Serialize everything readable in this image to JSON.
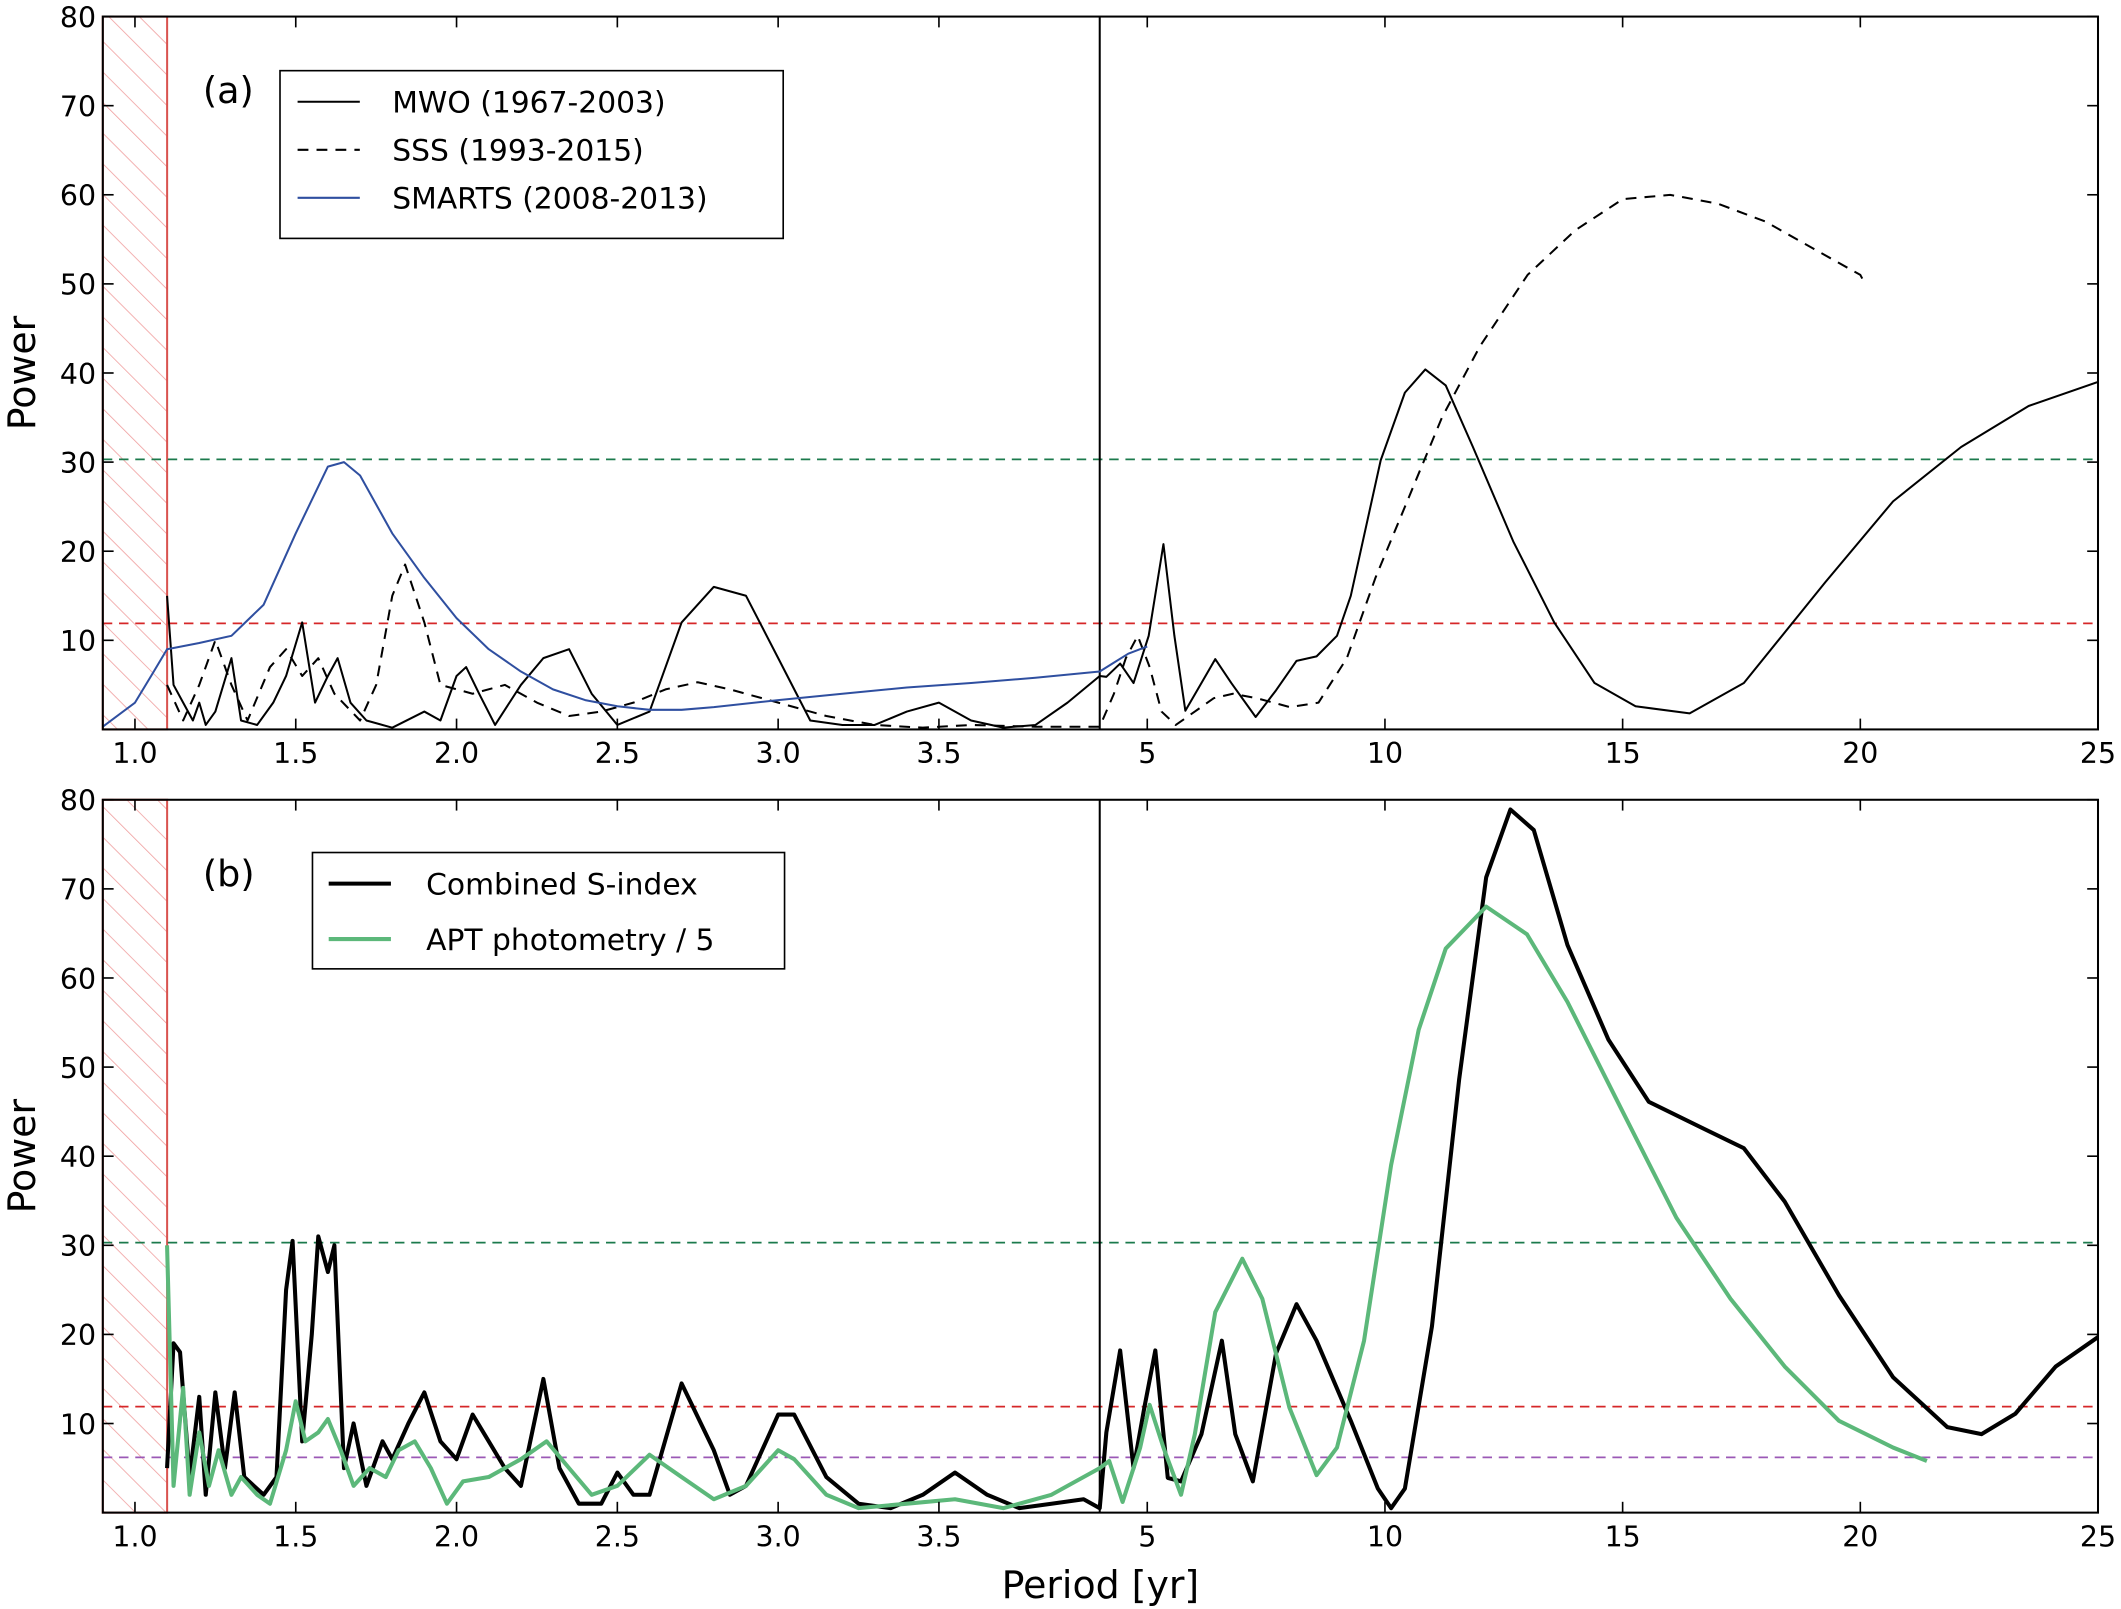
{
  "chart_data": [
    {
      "type": "line",
      "panel_label": "(a)",
      "ylabel": "Power",
      "xlim": [
        0.9,
        25
      ],
      "xbreak": 4.0,
      "xticks": [
        {
          "value": 1,
          "label": "1.0"
        },
        1.5,
        {
          "value": 2,
          "label": "2.0"
        },
        2.5,
        {
          "value": 3,
          "label": "3.0"
        },
        3.5,
        5,
        10,
        15,
        20,
        25
      ],
      "ylim": [
        0,
        80
      ],
      "yticks": [
        10,
        20,
        30,
        40,
        50,
        60,
        70,
        80
      ],
      "hlines": [
        {
          "value": 30.3,
          "color": "#1b7a4c"
        },
        {
          "value": 11.9,
          "color": "#d62728"
        }
      ],
      "vline": 4.0,
      "shaded": [
        0.9,
        1.1
      ],
      "series": [
        {
          "name": "MWO (1967-2003)",
          "color": "#000000",
          "dash": "solid",
          "width": 1.5,
          "x": [
            1.1,
            1.12,
            1.15,
            1.18,
            1.2,
            1.22,
            1.25,
            1.3,
            1.33,
            1.38,
            1.43,
            1.47,
            1.52,
            1.56,
            1.6,
            1.63,
            1.67,
            1.72,
            1.8,
            1.9,
            1.95,
            2.0,
            2.03,
            2.07,
            2.12,
            2.2,
            2.27,
            2.35,
            2.42,
            2.5,
            2.6,
            2.7,
            2.8,
            2.9,
            3.0,
            3.1,
            3.2,
            3.3,
            3.4,
            3.5,
            3.6,
            3.7,
            3.8,
            3.9,
            4.0,
            4.14,
            4.43,
            4.71,
            5.03,
            5.34,
            5.57,
            5.8,
            6.14,
            6.43,
            6.77,
            7.28,
            7.71,
            8.14,
            8.56,
            8.99,
            9.28,
            9.91,
            10.42,
            10.85,
            11.28,
            11.85,
            12.7,
            13.56,
            14.41,
            15.27,
            16.41,
            17.55,
            19.26,
            20.69,
            22.12,
            23.54,
            25
          ],
          "values": [
            15,
            5,
            3,
            1,
            3,
            0.5,
            2,
            8,
            1,
            0.5,
            3,
            6,
            12,
            3,
            6,
            8,
            3,
            1,
            0.2,
            2,
            1,
            6,
            7,
            4,
            0.5,
            5,
            8,
            9,
            4,
            0.5,
            2,
            12,
            16,
            15,
            8,
            1,
            0.5,
            0.5,
            2,
            3,
            1,
            0.2,
            0.5,
            3,
            6,
            5.9,
            7.4,
            5.2,
            10.5,
            20.8,
            10.5,
            2.1,
            5.2,
            7.9,
            5.2,
            1.4,
            4.4,
            7.7,
            8.2,
            10.5,
            15,
            30.2,
            37.8,
            40.4,
            38.6,
            31.7,
            21.1,
            12,
            5.2,
            2.6,
            1.8,
            5.2,
            16.5,
            25.6,
            31.7,
            36.3,
            39
          ]
        },
        {
          "name": "SSS (1993-2015)",
          "color": "#000000",
          "dash": "dashed",
          "width": 1.5,
          "x": [
            1.1,
            1.15,
            1.2,
            1.25,
            1.3,
            1.35,
            1.42,
            1.47,
            1.52,
            1.57,
            1.62,
            1.7,
            1.75,
            1.8,
            1.84,
            1.9,
            1.95,
            2.05,
            2.15,
            2.25,
            2.35,
            2.45,
            2.55,
            2.65,
            2.75,
            2.85,
            3.0,
            3.15,
            3.3,
            3.45,
            3.6,
            3.8,
            4.0,
            4.3,
            4.55,
            4.8,
            5.05,
            5.3,
            5.6,
            6.0,
            6.4,
            6.8,
            7.3,
            8.0,
            8.6,
            9.2,
            9.8,
            10.5,
            11.2,
            12,
            13,
            14,
            15,
            16,
            17,
            18,
            19,
            20,
            20.1
          ],
          "values": [
            5,
            1,
            5,
            10,
            5,
            1,
            7,
            9,
            6,
            8,
            4,
            1,
            5,
            15,
            18.5,
            12,
            5,
            4,
            5,
            3,
            1.5,
            2,
            3,
            4.5,
            5.3,
            4.5,
            3,
            1.5,
            0.5,
            0.2,
            0.5,
            0.3,
            0.3,
            4,
            8,
            10.5,
            7,
            2,
            0.5,
            2,
            3.5,
            4,
            3.5,
            2.5,
            3,
            8,
            17,
            26,
            35,
            43,
            51,
            56,
            59.5,
            60,
            59,
            57,
            54,
            51,
            50
          ]
        },
        {
          "name": "SMARTS (2008-2013)",
          "color": "#2f4fa0",
          "dash": "solid",
          "width": 1.5,
          "x": [
            0.9,
            1.0,
            1.05,
            1.1,
            1.2,
            1.3,
            1.4,
            1.5,
            1.6,
            1.65,
            1.7,
            1.8,
            1.9,
            2.0,
            2.1,
            2.2,
            2.3,
            2.4,
            2.5,
            2.6,
            2.7,
            2.8,
            3.0,
            3.2,
            3.4,
            3.6,
            3.8,
            4.0,
            4.3,
            4.6,
            5.0
          ],
          "values": [
            0.3,
            3,
            6,
            9,
            9.7,
            10.5,
            14,
            22,
            29.5,
            30,
            28.5,
            22,
            17,
            12.5,
            9,
            6.5,
            4.5,
            3.3,
            2.6,
            2.2,
            2.2,
            2.5,
            3.3,
            4,
            4.7,
            5.2,
            5.8,
            6.5,
            7.5,
            8.5,
            9.3
          ]
        }
      ]
    },
    {
      "type": "line",
      "panel_label": "(b)",
      "ylabel": "Power",
      "xlabel": "Period [yr]",
      "xlim": [
        0.9,
        25
      ],
      "xbreak": 4.0,
      "xticks": [
        {
          "value": 1,
          "label": "1.0"
        },
        1.5,
        {
          "value": 2,
          "label": "2.0"
        },
        2.5,
        {
          "value": 3,
          "label": "3.0"
        },
        3.5,
        5,
        10,
        15,
        20,
        25
      ],
      "ylim": [
        0,
        80
      ],
      "yticks": [
        10,
        20,
        30,
        40,
        50,
        60,
        70,
        80
      ],
      "hlines": [
        {
          "value": 30.3,
          "color": "#1b7a4c"
        },
        {
          "value": 11.9,
          "color": "#d62728"
        },
        {
          "value": 6.2,
          "color": "#9b59b6"
        }
      ],
      "vline": 4.0,
      "shaded": [
        0.9,
        1.1
      ],
      "series": [
        {
          "name": "Combined S-index",
          "color": "#000000",
          "dash": "solid",
          "width": 3,
          "x": [
            1.1,
            1.12,
            1.14,
            1.17,
            1.2,
            1.22,
            1.25,
            1.28,
            1.31,
            1.34,
            1.4,
            1.44,
            1.47,
            1.49,
            1.52,
            1.55,
            1.57,
            1.6,
            1.62,
            1.65,
            1.68,
            1.72,
            1.77,
            1.8,
            1.85,
            1.9,
            1.95,
            2.0,
            2.05,
            2.1,
            2.15,
            2.2,
            2.27,
            2.32,
            2.38,
            2.45,
            2.5,
            2.55,
            2.6,
            2.7,
            2.8,
            2.85,
            2.9,
            3.0,
            3.05,
            3.15,
            3.25,
            3.35,
            3.45,
            3.55,
            3.65,
            3.75,
            3.85,
            3.95,
            4.0,
            4.14,
            4.43,
            4.71,
            4.94,
            5.17,
            5.43,
            5.71,
            6.14,
            6.57,
            6.85,
            7.22,
            7.71,
            8.14,
            8.56,
            9.28,
            9.85,
            10.13,
            10.42,
            10.99,
            11.56,
            12.13,
            12.64,
            13.13,
            13.84,
            14.7,
            15.55,
            16.7,
            17.55,
            18.41,
            19.55,
            20.69,
            21.83,
            22.55,
            23.26,
            24.11,
            25
          ],
          "values": [
            5,
            19,
            18,
            4,
            13,
            2,
            13.5,
            5,
            13.5,
            4,
            2,
            4,
            25,
            30.5,
            8,
            20,
            31,
            27,
            30,
            5,
            10,
            3,
            8,
            6,
            10,
            13.5,
            8,
            6,
            11,
            8,
            5,
            3,
            15,
            5,
            1,
            1,
            4.5,
            2,
            2,
            14.5,
            7,
            2,
            3,
            11,
            11,
            4,
            1,
            0.5,
            2,
            4.5,
            2,
            0.5,
            1,
            1.5,
            0.5,
            9,
            18.2,
            5,
            11.8,
            18.2,
            3.9,
            3.5,
            8.8,
            19.3,
            8.8,
            3.5,
            17.9,
            23.4,
            19.3,
            10.3,
            2.7,
            0.5,
            2.7,
            20.9,
            48.6,
            71.3,
            78.9,
            76.6,
            63.7,
            53.1,
            46.1,
            43.1,
            40.9,
            34.9,
            24.4,
            15.2,
            9.6,
            8.8,
            11.1,
            16.4,
            19.7
          ]
        },
        {
          "name": "APT photometry / 5",
          "color": "#5cb87a",
          "dash": "solid",
          "width": 3,
          "x": [
            1.1,
            1.12,
            1.15,
            1.17,
            1.2,
            1.23,
            1.26,
            1.3,
            1.33,
            1.38,
            1.42,
            1.47,
            1.5,
            1.53,
            1.57,
            1.6,
            1.64,
            1.68,
            1.73,
            1.78,
            1.82,
            1.87,
            1.92,
            1.97,
            2.02,
            2.1,
            2.2,
            2.28,
            2.35,
            2.42,
            2.5,
            2.6,
            2.7,
            2.8,
            2.9,
            3.0,
            3.05,
            3.15,
            3.25,
            3.4,
            3.55,
            3.7,
            3.85,
            4.0,
            4.2,
            4.48,
            4.85,
            5.05,
            5.34,
            5.71,
            6.0,
            6.43,
            7.0,
            7.42,
            7.99,
            8.56,
            8.99,
            9.56,
            10.13,
            10.71,
            11.28,
            12.13,
            12.99,
            13.84,
            14.98,
            16.13,
            17.27,
            18.41,
            19.55,
            20.69,
            21.4
          ],
          "values": [
            30,
            3,
            14,
            2,
            9,
            3,
            7,
            2,
            4,
            2,
            1,
            7,
            12.5,
            8,
            9,
            10.5,
            7,
            3,
            5,
            4,
            7,
            8,
            5,
            1,
            3.5,
            4,
            6,
            8,
            5,
            2,
            3,
            6.5,
            4,
            1.5,
            3,
            7,
            6,
            2,
            0.5,
            1,
            1.5,
            0.5,
            2,
            5,
            5.8,
            1.2,
            7.3,
            12.1,
            7.3,
            2,
            8.8,
            22.5,
            28.5,
            24,
            11.8,
            4.2,
            7.3,
            19.3,
            39,
            54.2,
            63.3,
            68,
            64.9,
            57.3,
            45.2,
            33.1,
            24,
            16.4,
            10.3,
            7.3,
            5.8
          ]
        }
      ]
    }
  ]
}
